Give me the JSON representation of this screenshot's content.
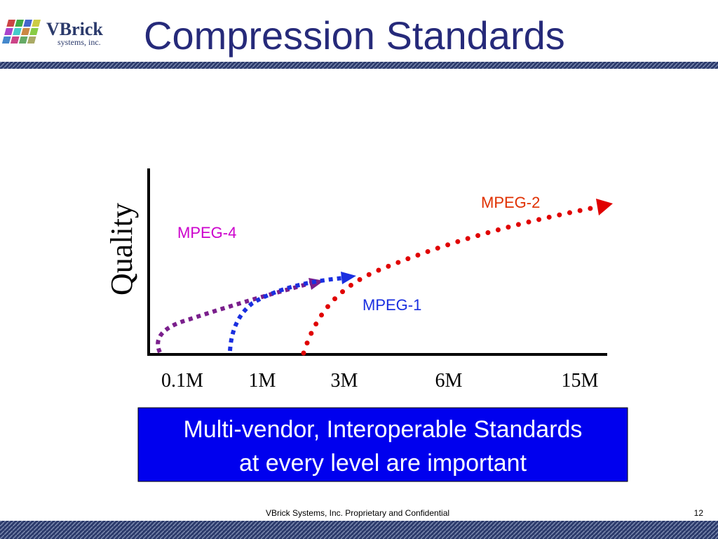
{
  "header": {
    "logo": "VBrick",
    "logo_sub": "systems, inc.",
    "title": "Compression Standards"
  },
  "diagram": {
    "y_axis_label": "Quality",
    "x_labels": [
      "0.1M",
      "1M",
      "3M",
      "6M",
      "15M"
    ],
    "curves": [
      {
        "label": "MPEG-4"
      },
      {
        "label": "MPEG-1"
      },
      {
        "label": "MPEG-2"
      }
    ]
  },
  "callout": {
    "lines": [
      "Multi-vendor, Interoperable Standards",
      "at every level are important"
    ]
  },
  "footer": {
    "text": "VBrick Systems, Inc. Proprietary and Confidential",
    "page": "12"
  }
}
